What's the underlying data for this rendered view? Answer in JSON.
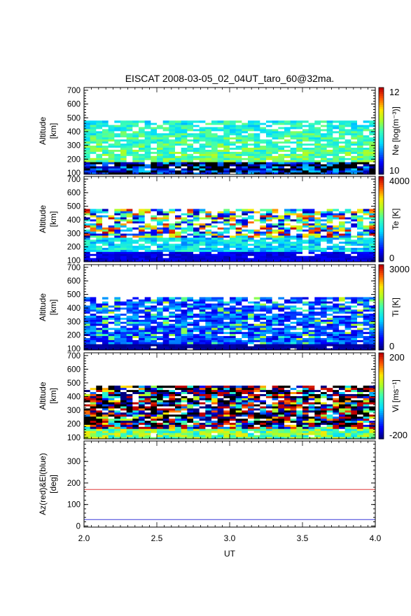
{
  "title": "EISCAT 2008-03-05_02_04UT_taro_60@32ma.",
  "chart_data": [
    {
      "type": "heatmap",
      "parameter": "Ne",
      "ylabel": [
        "Altitude",
        "[km]"
      ],
      "yticks": [
        100,
        200,
        300,
        400,
        500,
        600,
        700
      ],
      "ylim": [
        90,
        720
      ],
      "xlim": [
        2.0,
        4.0
      ],
      "data_top_km": 480,
      "colorbar": {
        "label": "Ne [log(m⁻³)]",
        "min_label": "10",
        "max_label": "12",
        "min": 10,
        "max": 12
      }
    },
    {
      "type": "heatmap",
      "parameter": "Te",
      "ylabel": [
        "Altitude",
        "[km]"
      ],
      "yticks": [
        100,
        200,
        300,
        400,
        500,
        600,
        700
      ],
      "ylim": [
        90,
        720
      ],
      "xlim": [
        2.0,
        4.0
      ],
      "data_top_km": 480,
      "colorbar": {
        "label": "Te [K]",
        "min_label": "0",
        "max_label": "4000",
        "min": 0,
        "max": 4000
      }
    },
    {
      "type": "heatmap",
      "parameter": "Ti",
      "ylabel": [
        "Altitude",
        "[km]"
      ],
      "yticks": [
        100,
        200,
        300,
        400,
        500,
        600,
        700
      ],
      "ylim": [
        90,
        720
      ],
      "xlim": [
        2.0,
        4.0
      ],
      "data_top_km": 480,
      "colorbar": {
        "label": "Ti [K]",
        "min_label": "0",
        "max_label": "3000",
        "min": 0,
        "max": 3000
      }
    },
    {
      "type": "heatmap",
      "parameter": "Vi",
      "ylabel": [
        "Altitude",
        "[km]"
      ],
      "yticks": [
        100,
        200,
        300,
        400,
        500,
        600,
        700
      ],
      "ylim": [
        90,
        720
      ],
      "xlim": [
        2.0,
        4.0
      ],
      "data_top_km": 480,
      "colorbar": {
        "label": "Vi [ms⁻¹]",
        "min_label": "-200",
        "max_label": "200",
        "min": -200,
        "max": 200
      }
    },
    {
      "type": "line",
      "ylabel": [
        "Az(red)&El(blue)",
        "[deg]"
      ],
      "yticks": [
        0,
        100,
        200,
        300
      ],
      "ylim": [
        -5,
        395
      ],
      "xlim": [
        2.0,
        4.0
      ],
      "xticks": [
        "2.0",
        "2.5",
        "3.0",
        "3.5",
        "4.0"
      ],
      "xlabel": "UT",
      "series": [
        {
          "name": "Az",
          "color": "#e03a3a",
          "x": [
            2.0,
            4.0
          ],
          "y": [
            170,
            170
          ]
        },
        {
          "name": "El",
          "color": "#3a3ad8",
          "x": [
            2.0,
            4.0
          ],
          "y": [
            30,
            30
          ]
        }
      ]
    }
  ]
}
